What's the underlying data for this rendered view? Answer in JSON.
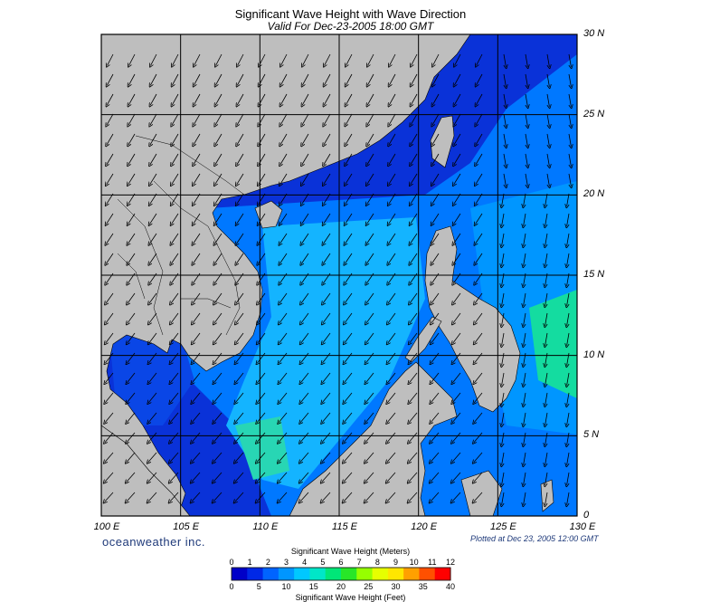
{
  "title": "Significant Wave Height with Wave Direction",
  "subtitle": "Valid For Dec-23-2005 18:00 GMT",
  "lat_labels": [
    "30 N",
    "25 N",
    "20 N",
    "15 N",
    "10 N",
    "5 N",
    "0"
  ],
  "lon_labels": [
    "100 E",
    "105 E",
    "110 E",
    "115 E",
    "120 E",
    "125 E",
    "130 E"
  ],
  "brand": "oceanweather inc.",
  "plotted": "Plotted at Dec 23, 2005 12:00 GMT",
  "colorbar": {
    "title_meters": "Significant Wave Height (Meters)",
    "title_feet": "Significant Wave Height (Feet)",
    "meters_ticks": [
      "0",
      "1",
      "2",
      "3",
      "4",
      "5",
      "6",
      "7",
      "8",
      "9",
      "10",
      "11",
      "12"
    ],
    "feet_ticks": [
      "0",
      "5",
      "10",
      "15",
      "20",
      "25",
      "30",
      "35",
      "40"
    ],
    "colors": [
      "#0000c8",
      "#0028e6",
      "#0064ff",
      "#0096ff",
      "#00c8ff",
      "#00e6c8",
      "#00e678",
      "#28e628",
      "#96ff00",
      "#e6ff00",
      "#ffe600",
      "#ffa000",
      "#ff5000",
      "#ff0000"
    ]
  },
  "colors": {
    "land": "#bebebe",
    "ocean_dark": "#0a32d8",
    "ocean_mid": "#0078ff",
    "ocean_light": "#14b4ff",
    "ocean_green": "#14dca0"
  }
}
